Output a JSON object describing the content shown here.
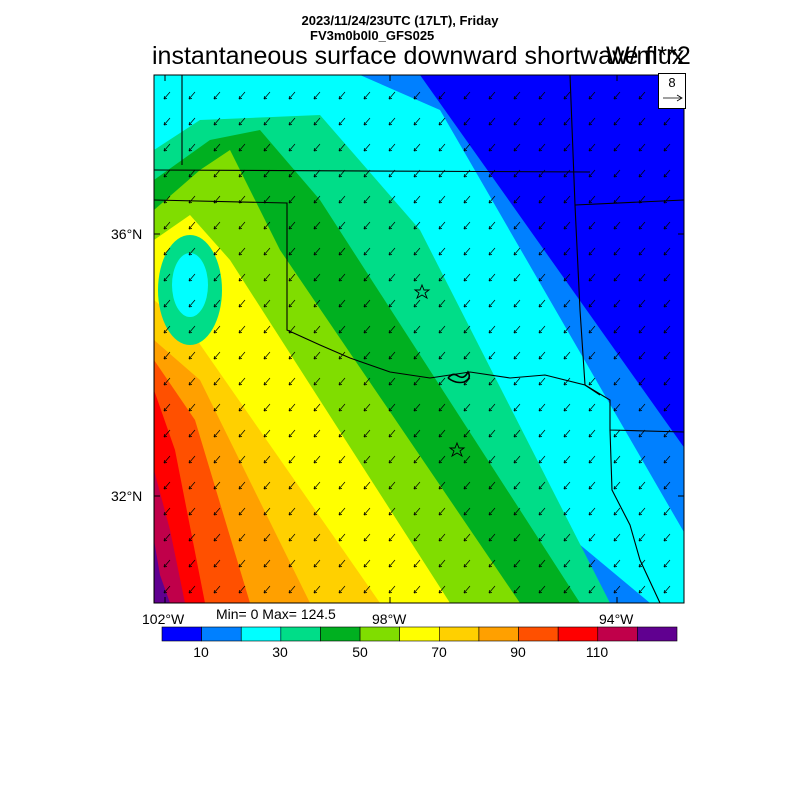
{
  "title": {
    "date_line": "2023/11/24/23UTC (17LT), Friday",
    "run_line": "FV3m0b0l0_GFS025",
    "main": "instantaneous surface downward shortwave flux",
    "units": "W/m**2"
  },
  "axes": {
    "lat_labels": [
      "36°N",
      "32°N"
    ],
    "lon_labels": [
      "102°W",
      "98°W",
      "94°W"
    ]
  },
  "stats": "Min= 0 Max= 124.5",
  "vector_reference": {
    "label": "8"
  },
  "colorbar": {
    "colors": [
      "#0000ff",
      "#0080ff",
      "#00ffff",
      "#00dd88",
      "#00b020",
      "#80dd00",
      "#ffff00",
      "#ffd000",
      "#ffa000",
      "#ff5000",
      "#ff0000",
      "#c0004a",
      "#600090"
    ],
    "tick_labels": [
      "10",
      "30",
      "50",
      "70",
      "90",
      "110"
    ]
  },
  "map": {
    "field_colors": [
      "#0000ff",
      "#0080ff",
      "#00ffff",
      "#00dd88",
      "#00b020",
      "#80dd00",
      "#ffff00",
      "#ffd000",
      "#ffa000",
      "#ff5000",
      "#ff0000",
      "#c0004a",
      "#600090"
    ],
    "markers": [
      "city-star-1",
      "city-star-2"
    ]
  }
}
